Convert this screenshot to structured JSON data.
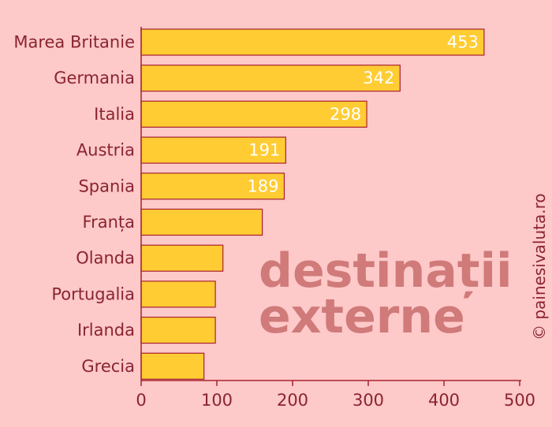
{
  "chart_data": {
    "type": "bar",
    "orientation": "horizontal",
    "categories": [
      "Marea Britanie",
      "Germania",
      "Italia",
      "Austria",
      "Spania",
      "Franța",
      "Olanda",
      "Portugalia",
      "Irlanda",
      "Grecia"
    ],
    "values": [
      453,
      342,
      298,
      191,
      189,
      160,
      108,
      98,
      98,
      83
    ],
    "data_labels": [
      "453",
      "342",
      "298",
      "191",
      "189",
      "",
      "",
      "",
      "",
      ""
    ],
    "xticks": [
      "0",
      "100",
      "200",
      "300",
      "400",
      "500"
    ],
    "xlim": [
      0,
      500
    ],
    "grid": false,
    "bar_color": "#ffcc33",
    "bar_edge_color": "#a8222f",
    "background_color": "#fdc9c9",
    "annotation": [
      "destinații",
      "externe"
    ]
  },
  "credit": "© painesivaluta.ro"
}
